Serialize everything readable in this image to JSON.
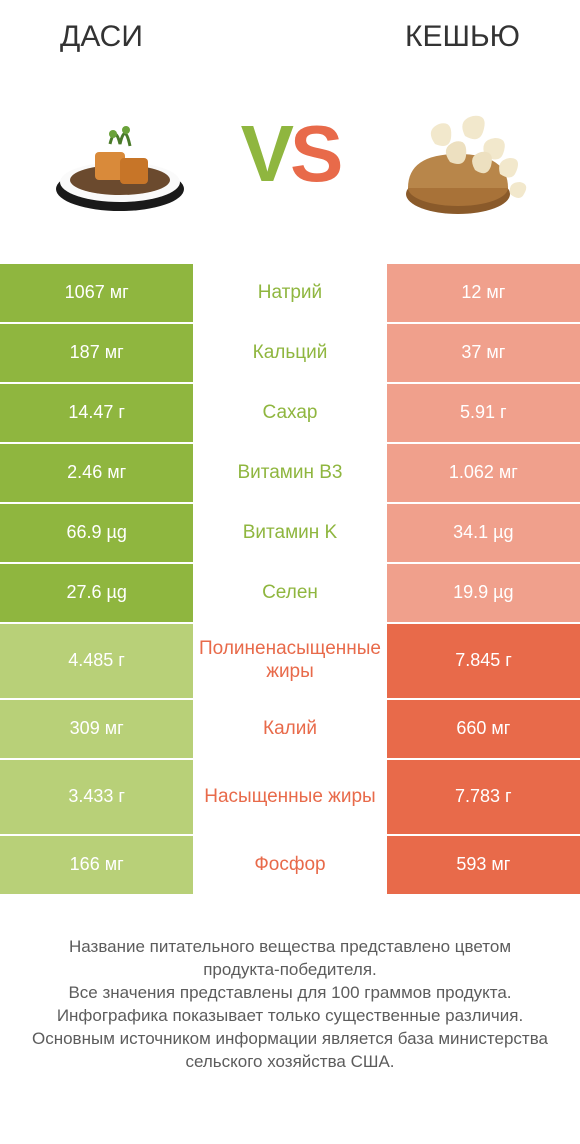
{
  "colors": {
    "left_win": "#8fb63f",
    "left_lose": "#b8d078",
    "right_win": "#e86a4a",
    "right_lose": "#f0a08c",
    "mid_left": "#8fb63f",
    "mid_right": "#e86a4a",
    "text_dark": "#333333"
  },
  "header": {
    "left_title": "ДАСИ",
    "right_title": "КЕШЬЮ",
    "vs_v": "V",
    "vs_s": "S"
  },
  "rows": [
    {
      "nutrient": "Натрий",
      "left": "1067 мг",
      "right": "12 мг",
      "winner": "left",
      "tall": false
    },
    {
      "nutrient": "Кальций",
      "left": "187 мг",
      "right": "37 мг",
      "winner": "left",
      "tall": false
    },
    {
      "nutrient": "Сахар",
      "left": "14.47 г",
      "right": "5.91 г",
      "winner": "left",
      "tall": false
    },
    {
      "nutrient": "Витамин B3",
      "left": "2.46 мг",
      "right": "1.062 мг",
      "winner": "left",
      "tall": false
    },
    {
      "nutrient": "Витамин K",
      "left": "66.9 µg",
      "right": "34.1 µg",
      "winner": "left",
      "tall": false
    },
    {
      "nutrient": "Селен",
      "left": "27.6 µg",
      "right": "19.9 µg",
      "winner": "left",
      "tall": false
    },
    {
      "nutrient": "Полиненасыщенные жиры",
      "left": "4.485 г",
      "right": "7.845 г",
      "winner": "right",
      "tall": true
    },
    {
      "nutrient": "Калий",
      "left": "309 мг",
      "right": "660 мг",
      "winner": "right",
      "tall": false
    },
    {
      "nutrient": "Насыщенные жиры",
      "left": "3.433 г",
      "right": "7.783 г",
      "winner": "right",
      "tall": true
    },
    {
      "nutrient": "Фосфор",
      "left": "166 мг",
      "right": "593 мг",
      "winner": "right",
      "tall": false
    }
  ],
  "footer": {
    "line1": "Название питательного вещества представлено цветом продукта-победителя.",
    "line2": "Все значения представлены для 100 граммов продукта.",
    "line3": "Инфографика показывает только существенные различия.",
    "line4": "Основным источником информации является база министерства сельского хозяйства США."
  }
}
